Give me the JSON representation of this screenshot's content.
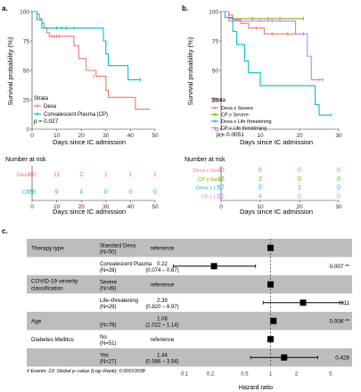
{
  "colors": {
    "red": "#F8766D",
    "teal": "#00BFC4",
    "green": "#7CAE00",
    "purple": "#C77CFF",
    "band": "#bdbdbd",
    "axis": "#333333"
  },
  "chart_data": [
    {
      "panel": "a.",
      "type": "line",
      "subtype": "kaplan-meier",
      "xlabel": "Days since IC admission",
      "ylabel": "Survival probability (%)",
      "xlim": [
        0,
        50
      ],
      "ylim": [
        0,
        100
      ],
      "x_ticks": [
        "0",
        "10",
        "20",
        "30",
        "40",
        "50"
      ],
      "y_ticks": [
        "0",
        "25",
        "50",
        "75",
        "100"
      ],
      "legend_title": "Strata",
      "legend": [
        "Dexa",
        "Convalescent Plasma (CP)"
      ],
      "pvalue": "p = 0.027",
      "series": [
        {
          "name": "Dexa",
          "color": "#F8766D",
          "steps": [
            [
              0,
              100
            ],
            [
              2,
              98
            ],
            [
              3,
              94
            ],
            [
              4,
              90
            ],
            [
              5,
              86
            ],
            [
              6,
              82
            ],
            [
              7,
              79
            ],
            [
              12,
              79
            ],
            [
              17,
              71
            ],
            [
              19,
              60
            ],
            [
              22,
              50
            ],
            [
              26,
              45
            ],
            [
              30,
              33
            ],
            [
              31,
              27
            ],
            [
              42,
              17
            ],
            [
              48,
              17
            ]
          ],
          "censor": [
            [
              8,
              79
            ],
            [
              9,
              79
            ],
            [
              10,
              79
            ],
            [
              11,
              79
            ],
            [
              25,
              45
            ]
          ]
        },
        {
          "name": "Convalescent Plasma (CP)",
          "color": "#00BFC4",
          "steps": [
            [
              0,
              100
            ],
            [
              2,
              93
            ],
            [
              4,
              86
            ],
            [
              21,
              86
            ],
            [
              29,
              75
            ],
            [
              30,
              64
            ],
            [
              31,
              54
            ],
            [
              39,
              42
            ],
            [
              44,
              42
            ]
          ],
          "censor": [
            [
              10,
              86
            ],
            [
              12,
              86
            ],
            [
              14,
              86
            ],
            [
              17,
              86
            ],
            [
              44,
              42
            ]
          ]
        }
      ],
      "risk_table": {
        "title": "Number at risk",
        "rows": [
          {
            "name": "Dexa",
            "values": [
              "50",
              "11",
              "2",
              "1",
              "1",
              "1"
            ]
          },
          {
            "name": "CP",
            "values": [
              "28",
              "9",
              "4",
              "0",
              "0",
              "0"
            ]
          }
        ],
        "x_ticks": [
          "0",
          "10",
          "20",
          "30",
          "40",
          "50"
        ],
        "xlabel": "Days since IC admission"
      }
    },
    {
      "panel": "b.",
      "type": "line",
      "subtype": "kaplan-meier",
      "xlabel": "Days since IC admission",
      "ylabel": "Survival probability (%)",
      "xlim": [
        0,
        30
      ],
      "ylim": [
        0,
        100
      ],
      "x_ticks": [
        "0",
        "10",
        "20",
        "30"
      ],
      "y_ticks": [
        "0",
        "25",
        "50",
        "75",
        "100"
      ],
      "legend_title": "Strata",
      "legend": [
        "Dexa x Severe",
        "CP x Severe",
        "Dexa x Life threatening",
        "CP x Life threatening"
      ],
      "pvalue": "p = 0.0051",
      "series": [
        {
          "name": "Dexa x Severe",
          "color": "#F8766D",
          "steps": [
            [
              0,
              100
            ],
            [
              2,
              97
            ],
            [
              3,
              93
            ],
            [
              5,
              90
            ],
            [
              7,
              86
            ],
            [
              11,
              81
            ],
            [
              21,
              81
            ]
          ],
          "censor": [
            [
              4,
              93
            ],
            [
              9,
              86
            ],
            [
              13,
              81
            ],
            [
              17,
              81
            ],
            [
              21,
              81
            ]
          ]
        },
        {
          "name": "CP x Severe",
          "color": "#7CAE00",
          "steps": [
            [
              0,
              100
            ],
            [
              2,
              94
            ],
            [
              21,
              94
            ]
          ],
          "censor": [
            [
              8,
              94
            ],
            [
              12,
              94
            ],
            [
              15,
              94
            ],
            [
              21,
              94
            ]
          ]
        },
        {
          "name": "Dexa x Life threatening",
          "color": "#00BFC4",
          "steps": [
            [
              0,
              100
            ],
            [
              1,
              95
            ],
            [
              3,
              83
            ],
            [
              4,
              72
            ],
            [
              6,
              58
            ],
            [
              7,
              48
            ],
            [
              10,
              37
            ],
            [
              24,
              21
            ],
            [
              25,
              12
            ],
            [
              28,
              12
            ]
          ],
          "censor": [
            [
              28,
              12
            ]
          ]
        },
        {
          "name": "CP x Life threatening",
          "color": "#C77CFF",
          "steps": [
            [
              0,
              100
            ],
            [
              2,
              92
            ],
            [
              16,
              92
            ],
            [
              19,
              81
            ],
            [
              22,
              62
            ],
            [
              23,
              42
            ],
            [
              26,
              42
            ]
          ],
          "censor": [
            [
              10,
              92
            ],
            [
              13,
              92
            ],
            [
              25,
              42
            ],
            [
              26,
              42
            ]
          ]
        }
      ],
      "risk_table": {
        "title": "Number at risk",
        "rows": [
          {
            "name": "Dexa x Sev",
            "values": [
              "33",
              "6",
              "0",
              "0"
            ]
          },
          {
            "name": "CP x Sev",
            "values": [
              "16",
              "2",
              "0",
              "0"
            ]
          },
          {
            "name": "Dexa x LT",
            "values": [
              "17",
              "5",
              "1",
              "0"
            ]
          },
          {
            "name": "CP x LT",
            "values": [
              "12",
              "4",
              "0",
              "0"
            ]
          }
        ],
        "x_ticks": [
          "0",
          "10",
          "20",
          "30"
        ],
        "xlabel": "Days since IC admission"
      }
    },
    {
      "panel": "c.",
      "type": "scatter",
      "subtype": "forest",
      "xlabel": "Hazard ratio",
      "x_scale": "log",
      "xlim": [
        0.05,
        10
      ],
      "x_ticks": [
        0.1,
        0.2,
        0.5,
        1,
        2,
        5
      ],
      "x_tick_labels": [
        "0.1",
        "0.2",
        "0.5",
        "1",
        "2",
        "5"
      ],
      "reference_line": 1,
      "rows": [
        {
          "variable": "Therapy type",
          "level": "Standard Dexa",
          "n": "(N=50)",
          "est_text": "reference",
          "hr": 1,
          "lo": null,
          "hi": null,
          "p": "",
          "shaded": true
        },
        {
          "variable": "",
          "level": "Convalescent Plasma",
          "n": "(N=28)",
          "est_text": "0.22",
          "ci_text": "(0.074 – 0.67)",
          "hr": 0.22,
          "lo": 0.074,
          "hi": 0.67,
          "p": "0.007 **",
          "shaded": false
        },
        {
          "variable": "COVID-19 severity classification",
          "level": "Severe",
          "n": "(N=49)",
          "est_text": "reference",
          "hr": 1,
          "lo": null,
          "hi": null,
          "p": "",
          "shaded": true
        },
        {
          "variable": "",
          "level": "Life–threatening",
          "n": "(N=29)",
          "est_text": "2.39",
          "ci_text": "(0.820 – 6.97)",
          "hr": 2.39,
          "lo": 0.82,
          "hi": 6.97,
          "p": "0.11",
          "shaded": false
        },
        {
          "variable": "Age",
          "level": "",
          "n": "(N=78)",
          "est_text": "1.08",
          "ci_text": "(1.022 – 1.14)",
          "hr": 1.08,
          "lo": 1.022,
          "hi": 1.14,
          "p": "0.006 **",
          "shaded": true
        },
        {
          "variable": "Diabetes Mellitus",
          "level": "No",
          "n": "(N=51)",
          "est_text": "reference",
          "hr": 1,
          "lo": null,
          "hi": null,
          "p": "",
          "shaded": false
        },
        {
          "variable": "",
          "level": "Yes",
          "n": "(N=27)",
          "est_text": "1.44",
          "ci_text": "(0.586 – 3.54)",
          "hr": 1.44,
          "lo": 0.586,
          "hi": 3.54,
          "p": "0.426",
          "shaded": true
        }
      ],
      "footnote": "# Events: 23; Global p–value (Log–Rank): 0.00010038"
    }
  ]
}
